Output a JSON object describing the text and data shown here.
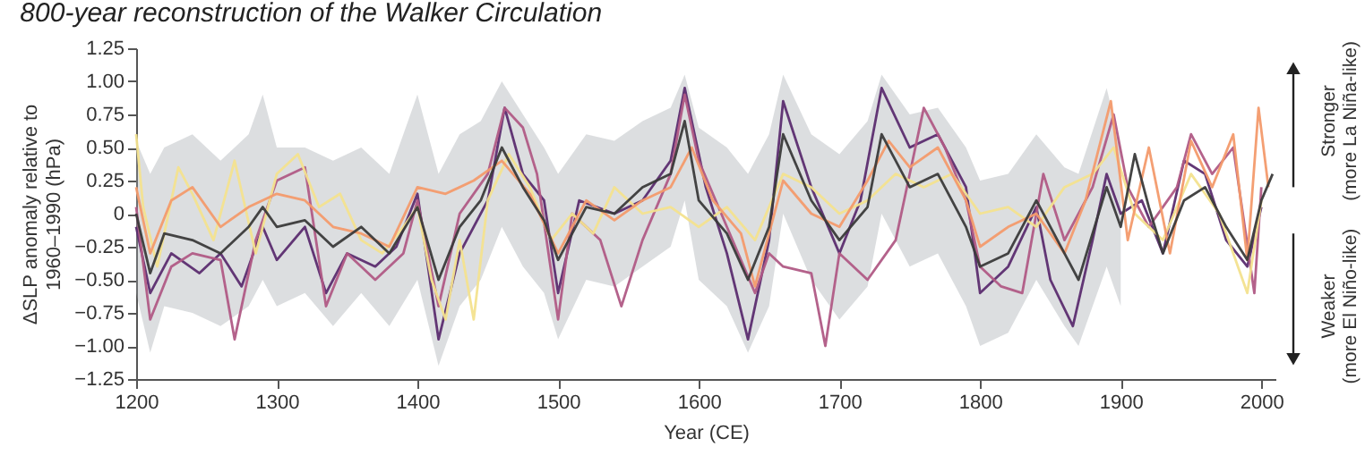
{
  "chart_data": {
    "type": "line",
    "title": "800-year reconstruction of the Walker Circulation",
    "xlabel": "Year (CE)",
    "ylabel": "ΔSLP anomaly relative to\n1960–1990 (hPa)",
    "annotations": [
      "Stronger\n(more La Niña-like)",
      "Weaker\n(more El Niño-like)"
    ],
    "xlim": [
      1200,
      2010
    ],
    "xticks": [
      1200,
      1300,
      1400,
      1500,
      1600,
      1700,
      1800,
      1900,
      2000
    ],
    "ylim": [
      -1.25,
      1.25
    ],
    "yticks": [
      {
        "value": 1.25,
        "label": "1.25"
      },
      {
        "value": 1,
        "label": "1.00"
      },
      {
        "value": 0.75,
        "label": "0.75"
      },
      {
        "value": 0.5,
        "label": "0.50"
      },
      {
        "value": 0.25,
        "label": "0.25"
      },
      0,
      {
        "value": -0.25,
        "label": "−0.25"
      },
      {
        "value": -0.5,
        "label": "−0.50"
      },
      {
        "value": -0.75,
        "label": "−0.75"
      },
      {
        "value": -1,
        "label": "−1.00"
      },
      {
        "value": -1.25,
        "label": "−1.25"
      }
    ],
    "grid": false,
    "line_style": "solid",
    "series": [
      {
        "color": "#5b2c6f",
        "x": [
          1200,
          1210,
          1225,
          1245,
          1260,
          1275,
          1290,
          1300,
          1320,
          1335,
          1350,
          1370,
          1385,
          1400,
          1415,
          1430,
          1450,
          1462,
          1475,
          1490,
          1500,
          1515,
          1540,
          1560,
          1580,
          1590,
          1605,
          1620,
          1635,
          1650,
          1660,
          1680,
          1700,
          1715,
          1730,
          1750,
          1770,
          1790,
          1800,
          1820,
          1840,
          1850,
          1866,
          1880,
          1890,
          1900,
          1915,
          1930,
          1945,
          1960,
          1975,
          1990,
          2000
        ],
        "values": [
          -0.1,
          -0.6,
          -0.3,
          -0.45,
          -0.3,
          -0.55,
          -0.1,
          -0.35,
          -0.1,
          -0.6,
          -0.3,
          -0.4,
          -0.25,
          0.15,
          -0.95,
          -0.3,
          0.1,
          0.8,
          0.3,
          0.1,
          -0.6,
          0.1,
          0.0,
          0.1,
          0.4,
          0.95,
          0.2,
          -0.3,
          -0.95,
          -0.2,
          0.85,
          0.2,
          -0.3,
          0.1,
          0.95,
          0.5,
          0.6,
          0.2,
          -0.6,
          -0.4,
          0.05,
          -0.5,
          -0.85,
          -0.2,
          0.3,
          0.0,
          0.1,
          -0.3,
          0.4,
          0.3,
          -0.2,
          -0.4,
          0.05
        ]
      },
      {
        "color": "#b05a85",
        "x": [
          1200,
          1210,
          1225,
          1240,
          1260,
          1270,
          1285,
          1300,
          1320,
          1335,
          1350,
          1370,
          1390,
          1400,
          1415,
          1430,
          1450,
          1462,
          1475,
          1485,
          1500,
          1510,
          1530,
          1545,
          1560,
          1580,
          1590,
          1600,
          1620,
          1640,
          1650,
          1660,
          1680,
          1690,
          1700,
          1720,
          1740,
          1760,
          1775,
          1790,
          1800,
          1815,
          1830,
          1845,
          1860,
          1880,
          1895,
          1905,
          1920,
          1940,
          1950,
          1965,
          1980,
          1995,
          2000
        ],
        "values": [
          0.05,
          -0.8,
          -0.4,
          -0.3,
          -0.35,
          -0.95,
          -0.2,
          0.25,
          0.35,
          -0.7,
          -0.3,
          -0.5,
          -0.3,
          0.1,
          -0.7,
          0.0,
          0.3,
          0.8,
          0.65,
          0.3,
          -0.8,
          0.0,
          -0.2,
          -0.7,
          -0.2,
          0.3,
          0.9,
          0.4,
          -0.1,
          -0.6,
          -0.3,
          -0.4,
          -0.45,
          -1.0,
          -0.3,
          -0.5,
          -0.2,
          0.8,
          0.5,
          0.1,
          -0.4,
          -0.55,
          -0.6,
          0.3,
          -0.2,
          0.2,
          0.75,
          0.2,
          -0.1,
          0.2,
          0.6,
          0.3,
          0.5,
          -0.6,
          0.2
        ]
      },
      {
        "color": "#f3e18e",
        "x": [
          1200,
          1205,
          1215,
          1230,
          1240,
          1255,
          1270,
          1285,
          1300,
          1315,
          1330,
          1345,
          1360,
          1375,
          1390,
          1400,
          1410,
          1420,
          1430,
          1440,
          1450,
          1465,
          1480,
          1495,
          1510,
          1525,
          1540,
          1560,
          1580,
          1600,
          1620,
          1640,
          1660,
          1680,
          1700,
          1720,
          1740,
          1760,
          1780,
          1800,
          1820,
          1840,
          1860,
          1880,
          1895,
          1910,
          1930,
          1950,
          1970,
          1990,
          2000
        ],
        "values": [
          0.6,
          0.05,
          -0.4,
          0.35,
          0.15,
          -0.2,
          0.4,
          -0.3,
          0.3,
          0.45,
          0.05,
          0.15,
          -0.2,
          -0.3,
          -0.1,
          0.05,
          -0.5,
          -0.8,
          -0.2,
          -0.8,
          0.1,
          0.45,
          0.2,
          -0.2,
          0.0,
          -0.15,
          0.2,
          0.0,
          0.05,
          -0.1,
          0.05,
          -0.2,
          0.3,
          0.2,
          0.0,
          0.1,
          0.3,
          0.2,
          0.3,
          0.0,
          0.05,
          -0.1,
          0.2,
          0.3,
          0.5,
          0.0,
          -0.2,
          0.3,
          0.0,
          -0.6,
          0.1
        ]
      },
      {
        "color": "#f39a6b",
        "x": [
          1200,
          1210,
          1225,
          1240,
          1260,
          1280,
          1300,
          1320,
          1340,
          1360,
          1380,
          1400,
          1420,
          1440,
          1460,
          1480,
          1500,
          1520,
          1540,
          1560,
          1580,
          1595,
          1610,
          1630,
          1640,
          1660,
          1680,
          1700,
          1720,
          1735,
          1750,
          1770,
          1790,
          1800,
          1820,
          1840,
          1860,
          1875,
          1893,
          1905,
          1920,
          1935,
          1950,
          1965,
          1980,
          1990,
          1998,
          2005
        ],
        "values": [
          0.2,
          -0.3,
          0.1,
          0.2,
          -0.1,
          0.05,
          0.15,
          0.1,
          -0.1,
          -0.15,
          -0.25,
          0.2,
          0.15,
          0.25,
          0.4,
          0.15,
          -0.3,
          0.1,
          -0.05,
          0.1,
          0.2,
          0.5,
          0.1,
          -0.15,
          -0.55,
          0.25,
          0.0,
          -0.1,
          0.25,
          0.55,
          0.35,
          0.5,
          0.1,
          -0.25,
          -0.1,
          0.0,
          -0.3,
          0.1,
          0.85,
          -0.2,
          0.5,
          -0.3,
          0.55,
          0.2,
          0.6,
          -0.35,
          0.8,
          0.2
        ]
      },
      {
        "color": "#3a3a3a",
        "x": [
          1200,
          1210,
          1220,
          1240,
          1260,
          1280,
          1290,
          1300,
          1320,
          1340,
          1360,
          1380,
          1400,
          1415,
          1430,
          1445,
          1460,
          1475,
          1490,
          1500,
          1520,
          1540,
          1560,
          1580,
          1590,
          1600,
          1620,
          1635,
          1650,
          1660,
          1680,
          1700,
          1720,
          1730,
          1750,
          1770,
          1790,
          1800,
          1820,
          1840,
          1860,
          1870,
          1890,
          1900,
          1910,
          1920,
          1930,
          1945,
          1960,
          1975,
          1990,
          2000,
          2008
        ],
        "values": [
          0,
          -0.45,
          -0.15,
          -0.2,
          -0.3,
          -0.1,
          0.05,
          -0.1,
          -0.05,
          -0.25,
          -0.1,
          -0.3,
          0.05,
          -0.5,
          -0.1,
          0.1,
          0.5,
          0.2,
          -0.05,
          -0.35,
          0.05,
          0,
          0.2,
          0.3,
          0.7,
          0.1,
          -0.15,
          -0.5,
          -0.1,
          0.6,
          0.1,
          -0.2,
          0.05,
          0.6,
          0.2,
          0.3,
          -0.1,
          -0.4,
          -0.3,
          0.1,
          -0.3,
          -0.5,
          0.2,
          -0.1,
          0.45,
          0.05,
          -0.3,
          0.1,
          0.2,
          -0.1,
          -0.35,
          0.1,
          0.3
        ],
        "upper": [
          0.55,
          0.3,
          0.5,
          0.6,
          0.4,
          0.6,
          0.9,
          0.5,
          0.5,
          0.4,
          0.5,
          0.3,
          0.9,
          0.3,
          0.6,
          0.7,
          1.0,
          0.75,
          0.5,
          0.3,
          0.6,
          0.55,
          0.7,
          0.8,
          1.05,
          0.65,
          0.5,
          0.3,
          0.6,
          1.05,
          0.6,
          0.45,
          0.7,
          1.05,
          0.75,
          0.8,
          0.5,
          0.25,
          0.3,
          0.6,
          0.35,
          0.3,
          0.95,
          0.5,
          null,
          null,
          null,
          null,
          null,
          null,
          null,
          null,
          null
        ],
        "lower": [
          -0.6,
          -1.05,
          -0.7,
          -0.75,
          -0.85,
          -0.7,
          -0.5,
          -0.7,
          -0.6,
          -0.85,
          -0.6,
          -0.85,
          -0.5,
          -1.15,
          -0.7,
          -0.5,
          -0.1,
          -0.4,
          -0.6,
          -0.95,
          -0.5,
          -0.55,
          -0.4,
          -0.25,
          0.1,
          -0.5,
          -0.7,
          -1.05,
          -0.7,
          0.0,
          -0.5,
          -0.8,
          -0.55,
          0.0,
          -0.4,
          -0.3,
          -0.7,
          -1.0,
          -0.9,
          -0.5,
          -0.85,
          -1.0,
          -0.4,
          -0.7,
          null,
          null,
          null,
          null,
          null,
          null,
          null,
          null,
          null
        ]
      }
    ]
  }
}
